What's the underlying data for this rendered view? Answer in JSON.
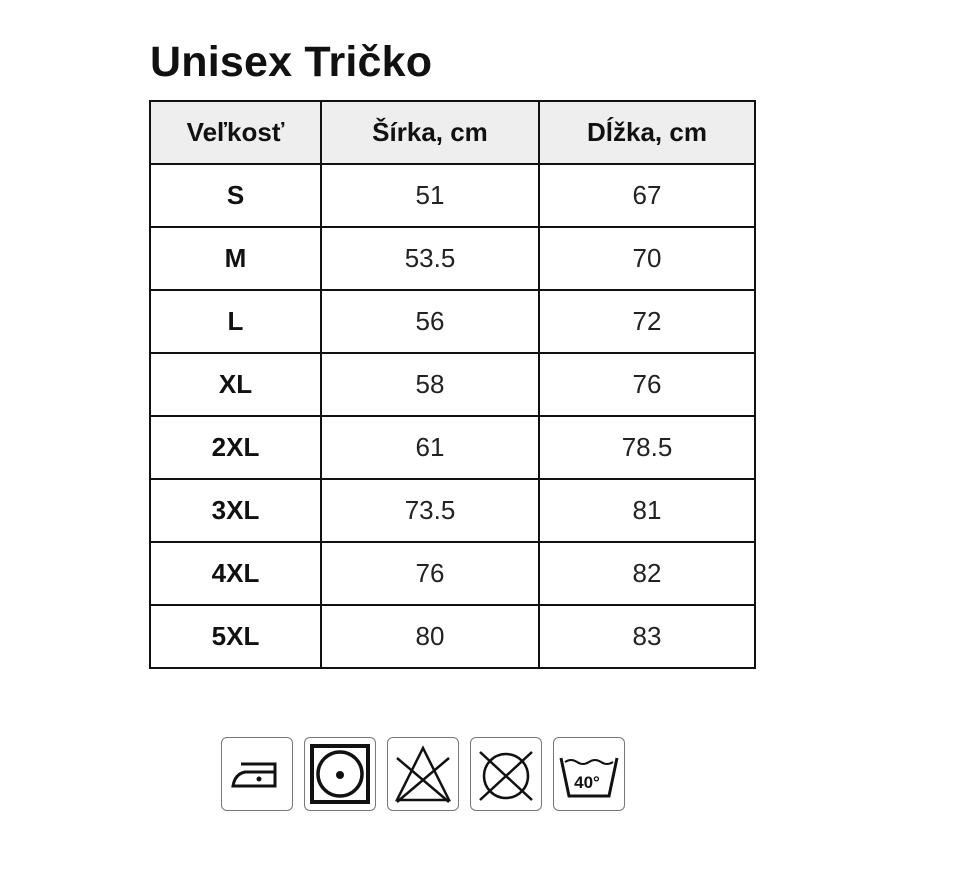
{
  "title": "Unisex Tričko",
  "table": {
    "headers": [
      "Veľkosť",
      "Šírka, cm",
      "Dĺžka, cm"
    ],
    "rows": [
      [
        "S",
        "51",
        "67"
      ],
      [
        "M",
        "53.5",
        "70"
      ],
      [
        "L",
        "56",
        "72"
      ],
      [
        "XL",
        "58",
        "76"
      ],
      [
        "2XL",
        "61",
        "78.5"
      ],
      [
        "3XL",
        "73.5",
        "81"
      ],
      [
        "4XL",
        "76",
        "82"
      ],
      [
        "5XL",
        "80",
        "83"
      ]
    ]
  },
  "care_icons": [
    {
      "name": "iron-low-heat-icon"
    },
    {
      "name": "tumble-dry-low-icon"
    },
    {
      "name": "do-not-bleach-icon"
    },
    {
      "name": "do-not-dry-clean-icon"
    },
    {
      "name": "wash-40-icon",
      "label": "40°"
    }
  ]
}
